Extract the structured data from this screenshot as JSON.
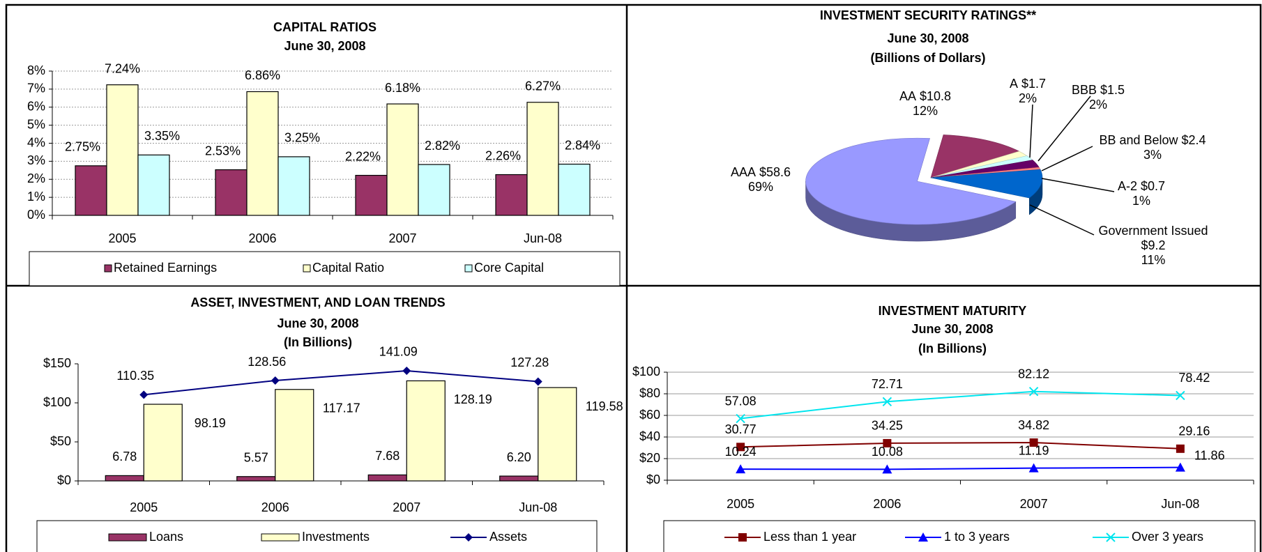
{
  "chart_data": [
    {
      "type": "bar",
      "title": "CAPITAL RATIOS",
      "subtitle": "June 30, 2008",
      "categories": [
        "2005",
        "2006",
        "2007",
        "Jun-08"
      ],
      "series": [
        {
          "name": "Retained Earnings",
          "color": "#993366",
          "values": [
            2.75,
            2.53,
            2.22,
            2.26
          ],
          "value_labels": [
            "2.75%",
            "2.53%",
            "2.22%",
            "2.26%"
          ]
        },
        {
          "name": "Capital Ratio",
          "color": "#ffffcc",
          "values": [
            7.24,
            6.86,
            6.18,
            6.27
          ],
          "value_labels": [
            "7.24%",
            "6.86%",
            "6.18%",
            "6.27%"
          ]
        },
        {
          "name": "Core Capital",
          "color": "#ccffff",
          "values": [
            3.35,
            3.25,
            2.82,
            2.84
          ],
          "value_labels": [
            "3.35%",
            "3.25%",
            "2.82%",
            "2.84%"
          ]
        }
      ],
      "ylim": [
        0,
        8
      ],
      "yticks": [
        {
          "value": 0,
          "label": "0%"
        },
        {
          "value": 1,
          "label": "1%"
        },
        {
          "value": 2,
          "label": "2%"
        },
        {
          "value": 3,
          "label": "3%"
        },
        {
          "value": 4,
          "label": "4%"
        },
        {
          "value": 5,
          "label": "5%"
        },
        {
          "value": 6,
          "label": "6%"
        },
        {
          "value": 7,
          "label": "7%"
        },
        {
          "value": 8,
          "label": "8%"
        }
      ],
      "grid": true,
      "legend": "bottom"
    },
    {
      "type": "pie",
      "title": "INVESTMENT SECURITY RATINGS**",
      "subtitle": "June 30, 2008",
      "unit_note": "(Billions of Dollars)",
      "categories": [
        "AAA",
        "AA",
        "A",
        "BBB",
        "BB and Below",
        "A-2",
        "Government Issued"
      ],
      "values": [
        58.6,
        10.8,
        1.7,
        1.5,
        2.4,
        0.7,
        9.2
      ],
      "value_labels": [
        "$58.6",
        "$10.8",
        "$1.7",
        "$1.5",
        "$2.4",
        "$0.7",
        "$9.2"
      ],
      "percents": [
        69,
        12,
        2,
        2,
        3,
        1,
        11
      ],
      "percent_labels": [
        "69%",
        "12%",
        "2%",
        "2%",
        "3%",
        "1%",
        "11%"
      ],
      "colors": [
        "#9999ff",
        "#993366",
        "#ffffcc",
        "#ccffff",
        "#660066",
        "#ff8080",
        "#0066cc"
      ]
    },
    {
      "type": "bar",
      "title": "ASSET, INVESTMENT, AND LOAN TRENDS",
      "subtitle": "June 30, 2008",
      "unit_note": "(In Billions)",
      "categories": [
        "2005",
        "2006",
        "2007",
        "Jun-08"
      ],
      "series": [
        {
          "name": "Loans",
          "type": "bar",
          "color": "#993366",
          "values": [
            6.78,
            5.57,
            7.68,
            6.2
          ],
          "value_labels": [
            "6.78",
            "5.57",
            "7.68",
            "6.20"
          ]
        },
        {
          "name": "Investments",
          "type": "bar",
          "color": "#ffffcc",
          "values": [
            98.19,
            117.17,
            128.19,
            119.58
          ]
        },
        {
          "name": "Assets",
          "type": "line",
          "marker": "diamond",
          "color": "#000080",
          "values": [
            110.35,
            128.56,
            141.09,
            127.28
          ]
        }
      ],
      "ylim": [
        0,
        150
      ],
      "yticks": [
        {
          "value": 0,
          "label": "$0"
        },
        {
          "value": 50,
          "label": "$50"
        },
        {
          "value": 100,
          "label": "$100"
        },
        {
          "value": 150,
          "label": "$150"
        }
      ],
      "grid": false,
      "legend": "bottom"
    },
    {
      "type": "line",
      "title": "INVESTMENT MATURITY",
      "subtitle": "June 30, 2008",
      "unit_note": "(In Billions)",
      "categories": [
        "2005",
        "2006",
        "2007",
        "Jun-08"
      ],
      "series": [
        {
          "name": "Less than 1 year",
          "marker": "square",
          "color": "#800000",
          "values": [
            30.77,
            34.25,
            34.82,
            29.16
          ]
        },
        {
          "name": "1 to 3 years",
          "marker": "triangle",
          "color": "#0000ff",
          "values": [
            10.24,
            10.08,
            11.19,
            11.86
          ]
        },
        {
          "name": "Over 3 years",
          "marker": "x",
          "color": "#00e5ee",
          "values": [
            57.08,
            72.71,
            82.12,
            78.42
          ]
        }
      ],
      "ylim": [
        0,
        100
      ],
      "yticks": [
        {
          "value": 0,
          "label": "$0"
        },
        {
          "value": 20,
          "label": "$20"
        },
        {
          "value": 40,
          "label": "$40"
        },
        {
          "value": 60,
          "label": "$60"
        },
        {
          "value": 80,
          "label": "$80"
        },
        {
          "value": 100,
          "label": "$100"
        }
      ],
      "grid": true,
      "legend": "bottom"
    }
  ]
}
